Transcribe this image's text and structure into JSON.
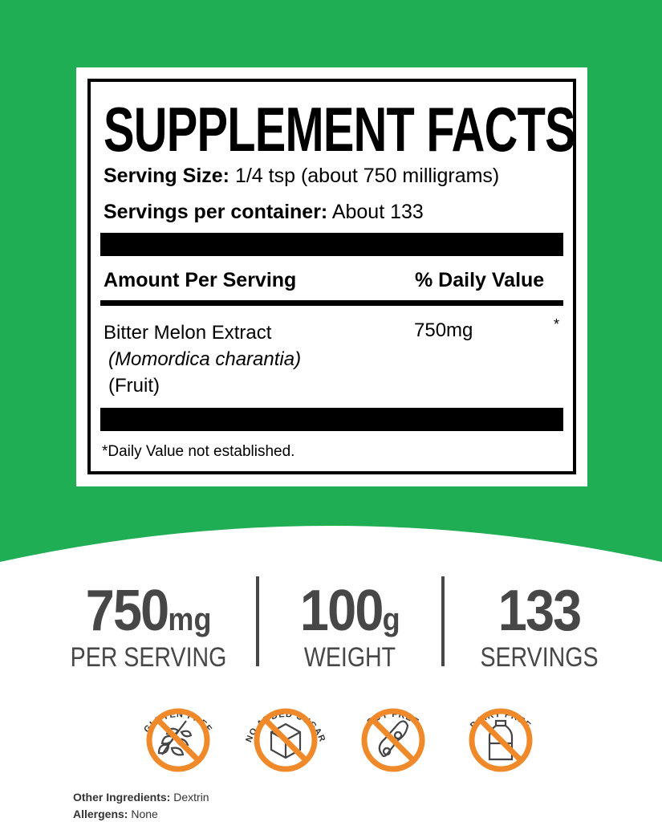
{
  "facts": {
    "title": "SUPPLEMENT FACTS",
    "serving_size_label": "Serving Size:",
    "serving_size": "1/4 tsp (about 750 milligrams)",
    "servings_label": "Servings per container:",
    "servings": "About 133",
    "amount_header": "Amount Per Serving",
    "dv_header": "% Daily Value",
    "ingredient": {
      "name": "Bitter Melon Extract",
      "latin": "(Momordica charantia)",
      "part": "(Fruit)",
      "amount": "750mg",
      "dv": "*"
    },
    "footnote": "*Daily Value not established."
  },
  "stats": [
    {
      "value": "750",
      "unit": "mg",
      "label": "PER SERVING"
    },
    {
      "value": "100",
      "unit": "g",
      "label": "WEIGHT"
    },
    {
      "value": "133",
      "unit": "",
      "label": "SERVINGS"
    }
  ],
  "badges": [
    {
      "label": "GLUTEN FREE",
      "icon": "wheat-icon"
    },
    {
      "label": "NO ADDED SUGAR",
      "icon": "sugar-cube-icon"
    },
    {
      "label": "SOY FREE",
      "icon": "soybean-icon"
    },
    {
      "label": "DAIRY FREE",
      "icon": "milk-bottle-icon"
    }
  ],
  "other_ingredients_label": "Other Ingredients:",
  "other_ingredients": "Dextrin",
  "allergens_label": "Allergens:",
  "allergens": "None",
  "colors": {
    "green": "#1fae54",
    "orange": "#f0892a",
    "gray": "#474747"
  }
}
